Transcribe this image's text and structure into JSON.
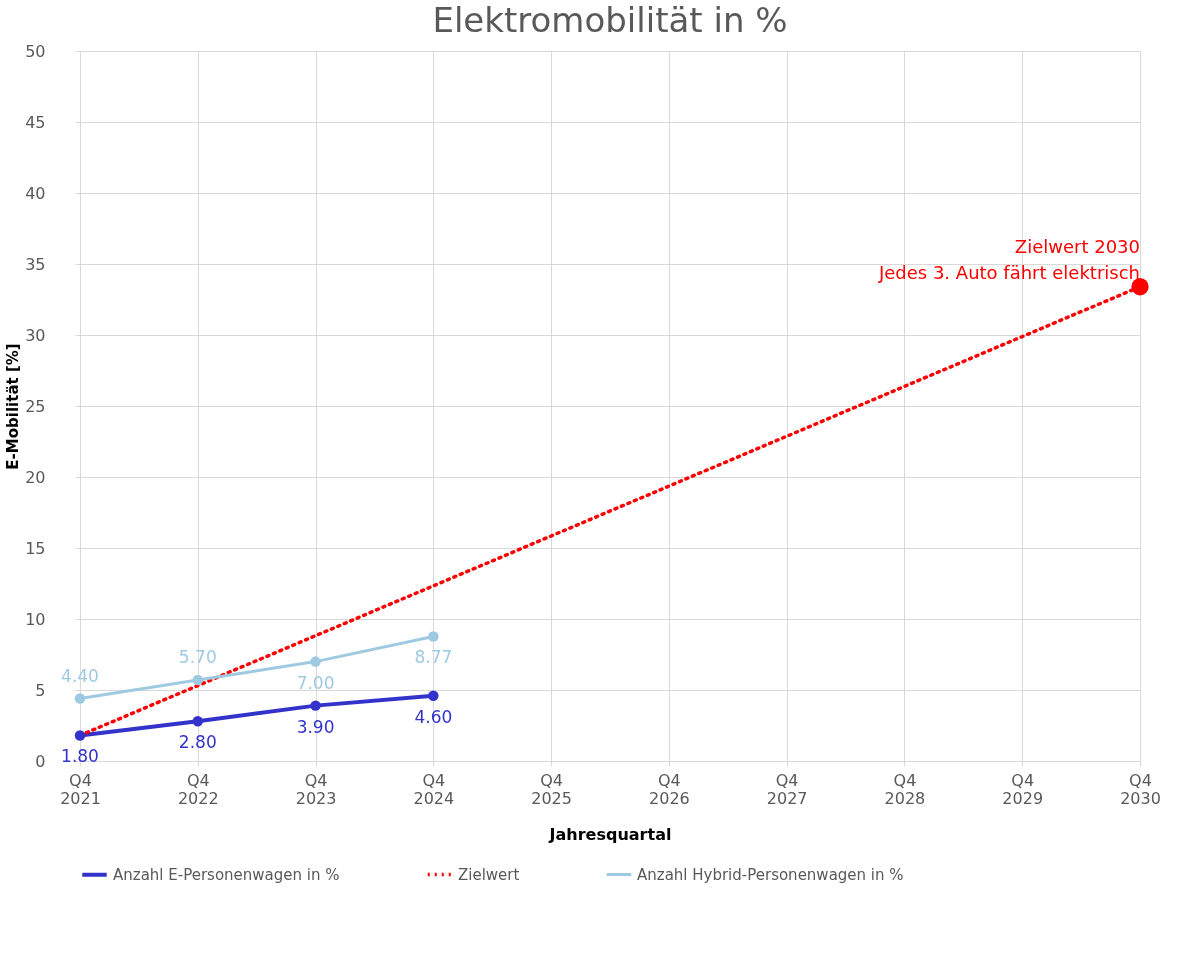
{
  "chart_data": {
    "type": "line",
    "title": "Elektromobilität in %",
    "xlabel": "Jahresquartal",
    "ylabel": "E-Mobilität [%]",
    "categories": [
      "Q4 2021",
      "Q4 2022",
      "Q4 2023",
      "Q4 2024",
      "Q4 2025",
      "Q4 2026",
      "Q4 2027",
      "Q4 2028",
      "Q4 2029",
      "Q4 2030"
    ],
    "series": [
      {
        "name": "Anzahl E-Personenwagen in %",
        "color": "#3333cc",
        "marker": "circle",
        "line_style": "solid",
        "values": [
          1.8,
          2.8,
          3.9,
          4.6,
          null,
          null,
          null,
          null,
          null,
          null
        ],
        "value_labels": [
          "1.80",
          "2.80",
          "3.90",
          "4.60",
          null,
          null,
          null,
          null,
          null,
          null
        ]
      },
      {
        "name": "Zielwert",
        "color": "#ff0000",
        "marker": "none",
        "line_style": "dotted",
        "values": [
          1.8,
          null,
          null,
          null,
          null,
          null,
          null,
          null,
          null,
          33.4
        ]
      },
      {
        "name": "Anzahl Hybrid-Personenwagen in %",
        "color": "#9ecae1",
        "marker": "circle",
        "line_style": "solid",
        "values": [
          4.4,
          5.7,
          7.0,
          8.77,
          null,
          null,
          null,
          null,
          null,
          null
        ],
        "value_labels": [
          "4.40",
          "5.70",
          "7.00",
          "8.77",
          null,
          null,
          null,
          null,
          null,
          null
        ]
      },
      {
        "type": "scatter",
        "color": "#ff0000",
        "marker": "circle",
        "values": [
          null,
          null,
          null,
          null,
          null,
          null,
          null,
          null,
          null,
          33.4
        ]
      }
    ],
    "ylim": [
      0,
      50
    ],
    "yticks": [
      0,
      5,
      10,
      15,
      20,
      25,
      30,
      35,
      40,
      45,
      50
    ],
    "grid": true,
    "legend": "bottom",
    "annotations": [
      {
        "text": "Zielwert 2030\nJedes 3. Auto fährt elektrisch",
        "x": "Q4 2030",
        "y": 33.4
      }
    ]
  }
}
